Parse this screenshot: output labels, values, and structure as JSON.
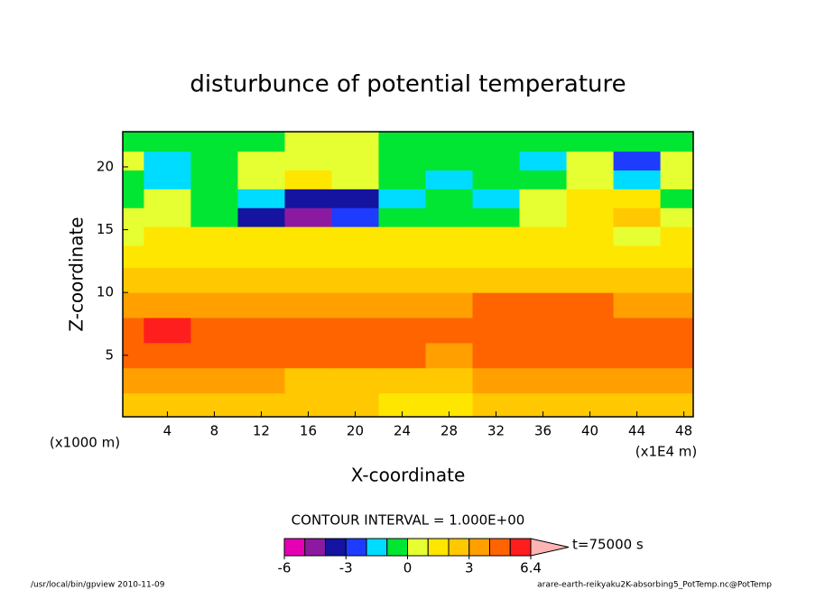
{
  "chart_data": {
    "type": "contour",
    "title": "disturbunce of potential temperature",
    "xlabel": "X-coordinate",
    "ylabel": "Z-coordinate",
    "x_unit_label": "(x1E4 m)",
    "y_unit_label": "(x1000 m)",
    "xlim": [
      0.2,
      48.8
    ],
    "ylim": [
      0.1,
      22.8
    ],
    "xticks": [
      4,
      8,
      12,
      16,
      20,
      24,
      28,
      32,
      36,
      40,
      44,
      48
    ],
    "yticks": [
      5,
      10,
      15,
      20
    ],
    "x": [
      0,
      4,
      8,
      12,
      16,
      20,
      24,
      28,
      32,
      36,
      40,
      44,
      48
    ],
    "y": [
      1,
      3,
      5,
      7,
      9,
      11,
      13,
      14.5,
      16,
      17.5,
      19,
      20.5,
      22
    ],
    "z": [
      [
        2.5,
        2.5,
        2.5,
        2.5,
        2.5,
        2.5,
        1.8,
        1.8,
        2.5,
        2.5,
        2.5,
        2.5,
        2.5
      ],
      [
        3.3,
        3.3,
        3.3,
        3.3,
        2.7,
        2.7,
        2.7,
        2.7,
        3.3,
        3.3,
        3.3,
        3.3,
        3.3
      ],
      [
        4.5,
        4.5,
        4.5,
        4.5,
        4.5,
        4.5,
        4.5,
        3.8,
        4.5,
        4.5,
        4.5,
        4.5,
        4.5
      ],
      [
        4.6,
        5.2,
        4.6,
        4.6,
        4.6,
        4.6,
        4.6,
        4.6,
        4.6,
        4.6,
        4.6,
        4.6,
        4.6
      ],
      [
        3.6,
        3.6,
        3.6,
        3.6,
        3.6,
        3.6,
        3.6,
        3.6,
        4.3,
        4.3,
        4.3,
        3.6,
        3.6
      ],
      [
        2.5,
        2.5,
        2.5,
        2.5,
        2.5,
        2.5,
        2.5,
        2.5,
        2.5,
        2.5,
        2.5,
        2.5,
        2.5
      ],
      [
        1.5,
        1.5,
        1.5,
        1.5,
        1.5,
        1.5,
        1.5,
        1.5,
        1.5,
        1.5,
        1.5,
        1.5,
        1.5
      ],
      [
        0.5,
        1.3,
        1.3,
        1.3,
        1.3,
        1.3,
        1.3,
        1.3,
        1.3,
        1.3,
        1.3,
        0.5,
        1.3
      ],
      [
        0.5,
        0.8,
        -0.5,
        -3.5,
        -4.5,
        -2.5,
        -0.5,
        -0.5,
        -0.3,
        0.5,
        1.5,
        2.5,
        0.5
      ],
      [
        -0.5,
        0.5,
        -0.5,
        -1.5,
        -3.2,
        -3.5,
        -1.5,
        -0.5,
        -1.2,
        0.5,
        1.5,
        1.5,
        -0.5
      ],
      [
        -0.5,
        -1.5,
        -0.5,
        0.5,
        1.5,
        0.5,
        -0.3,
        -1.5,
        -0.5,
        -0.5,
        0.5,
        -1.5,
        0.5
      ],
      [
        0.5,
        -1.5,
        -0.5,
        0.5,
        0.8,
        0.5,
        -0.5,
        -0.5,
        -0.5,
        -1.5,
        0.5,
        -2.5,
        0.5
      ],
      [
        -0.5,
        -0.5,
        -0.5,
        -0.5,
        0.5,
        0.5,
        -0.5,
        -0.5,
        -0.5,
        -0.5,
        -0.5,
        -0.5,
        -0.5
      ]
    ],
    "levels": [
      -6,
      -5,
      -4,
      -3,
      -2,
      -1,
      0,
      1,
      2,
      3,
      4,
      5,
      6.4
    ],
    "colors": [
      "#e600b4",
      "#8c1aa0",
      "#1414a0",
      "#1e3cff",
      "#00dcff",
      "#00e632",
      "#e6ff32",
      "#ffe600",
      "#ffc800",
      "#ffa000",
      "#ff6400",
      "#ff1e1e"
    ],
    "extend_color": "#ffb4b4",
    "colorbar_ticks": [
      -6,
      -3,
      0,
      3,
      6.4
    ],
    "contour_interval_label": "CONTOUR INTERVAL = 1.000E+00",
    "time_label": "t=75000 s",
    "footer_left": "/usr/local/bin/gpview  2010-11-09",
    "footer_right": "arare-earth-reikyaku2K-absorbing5_PotTemp.nc@PotTemp"
  }
}
